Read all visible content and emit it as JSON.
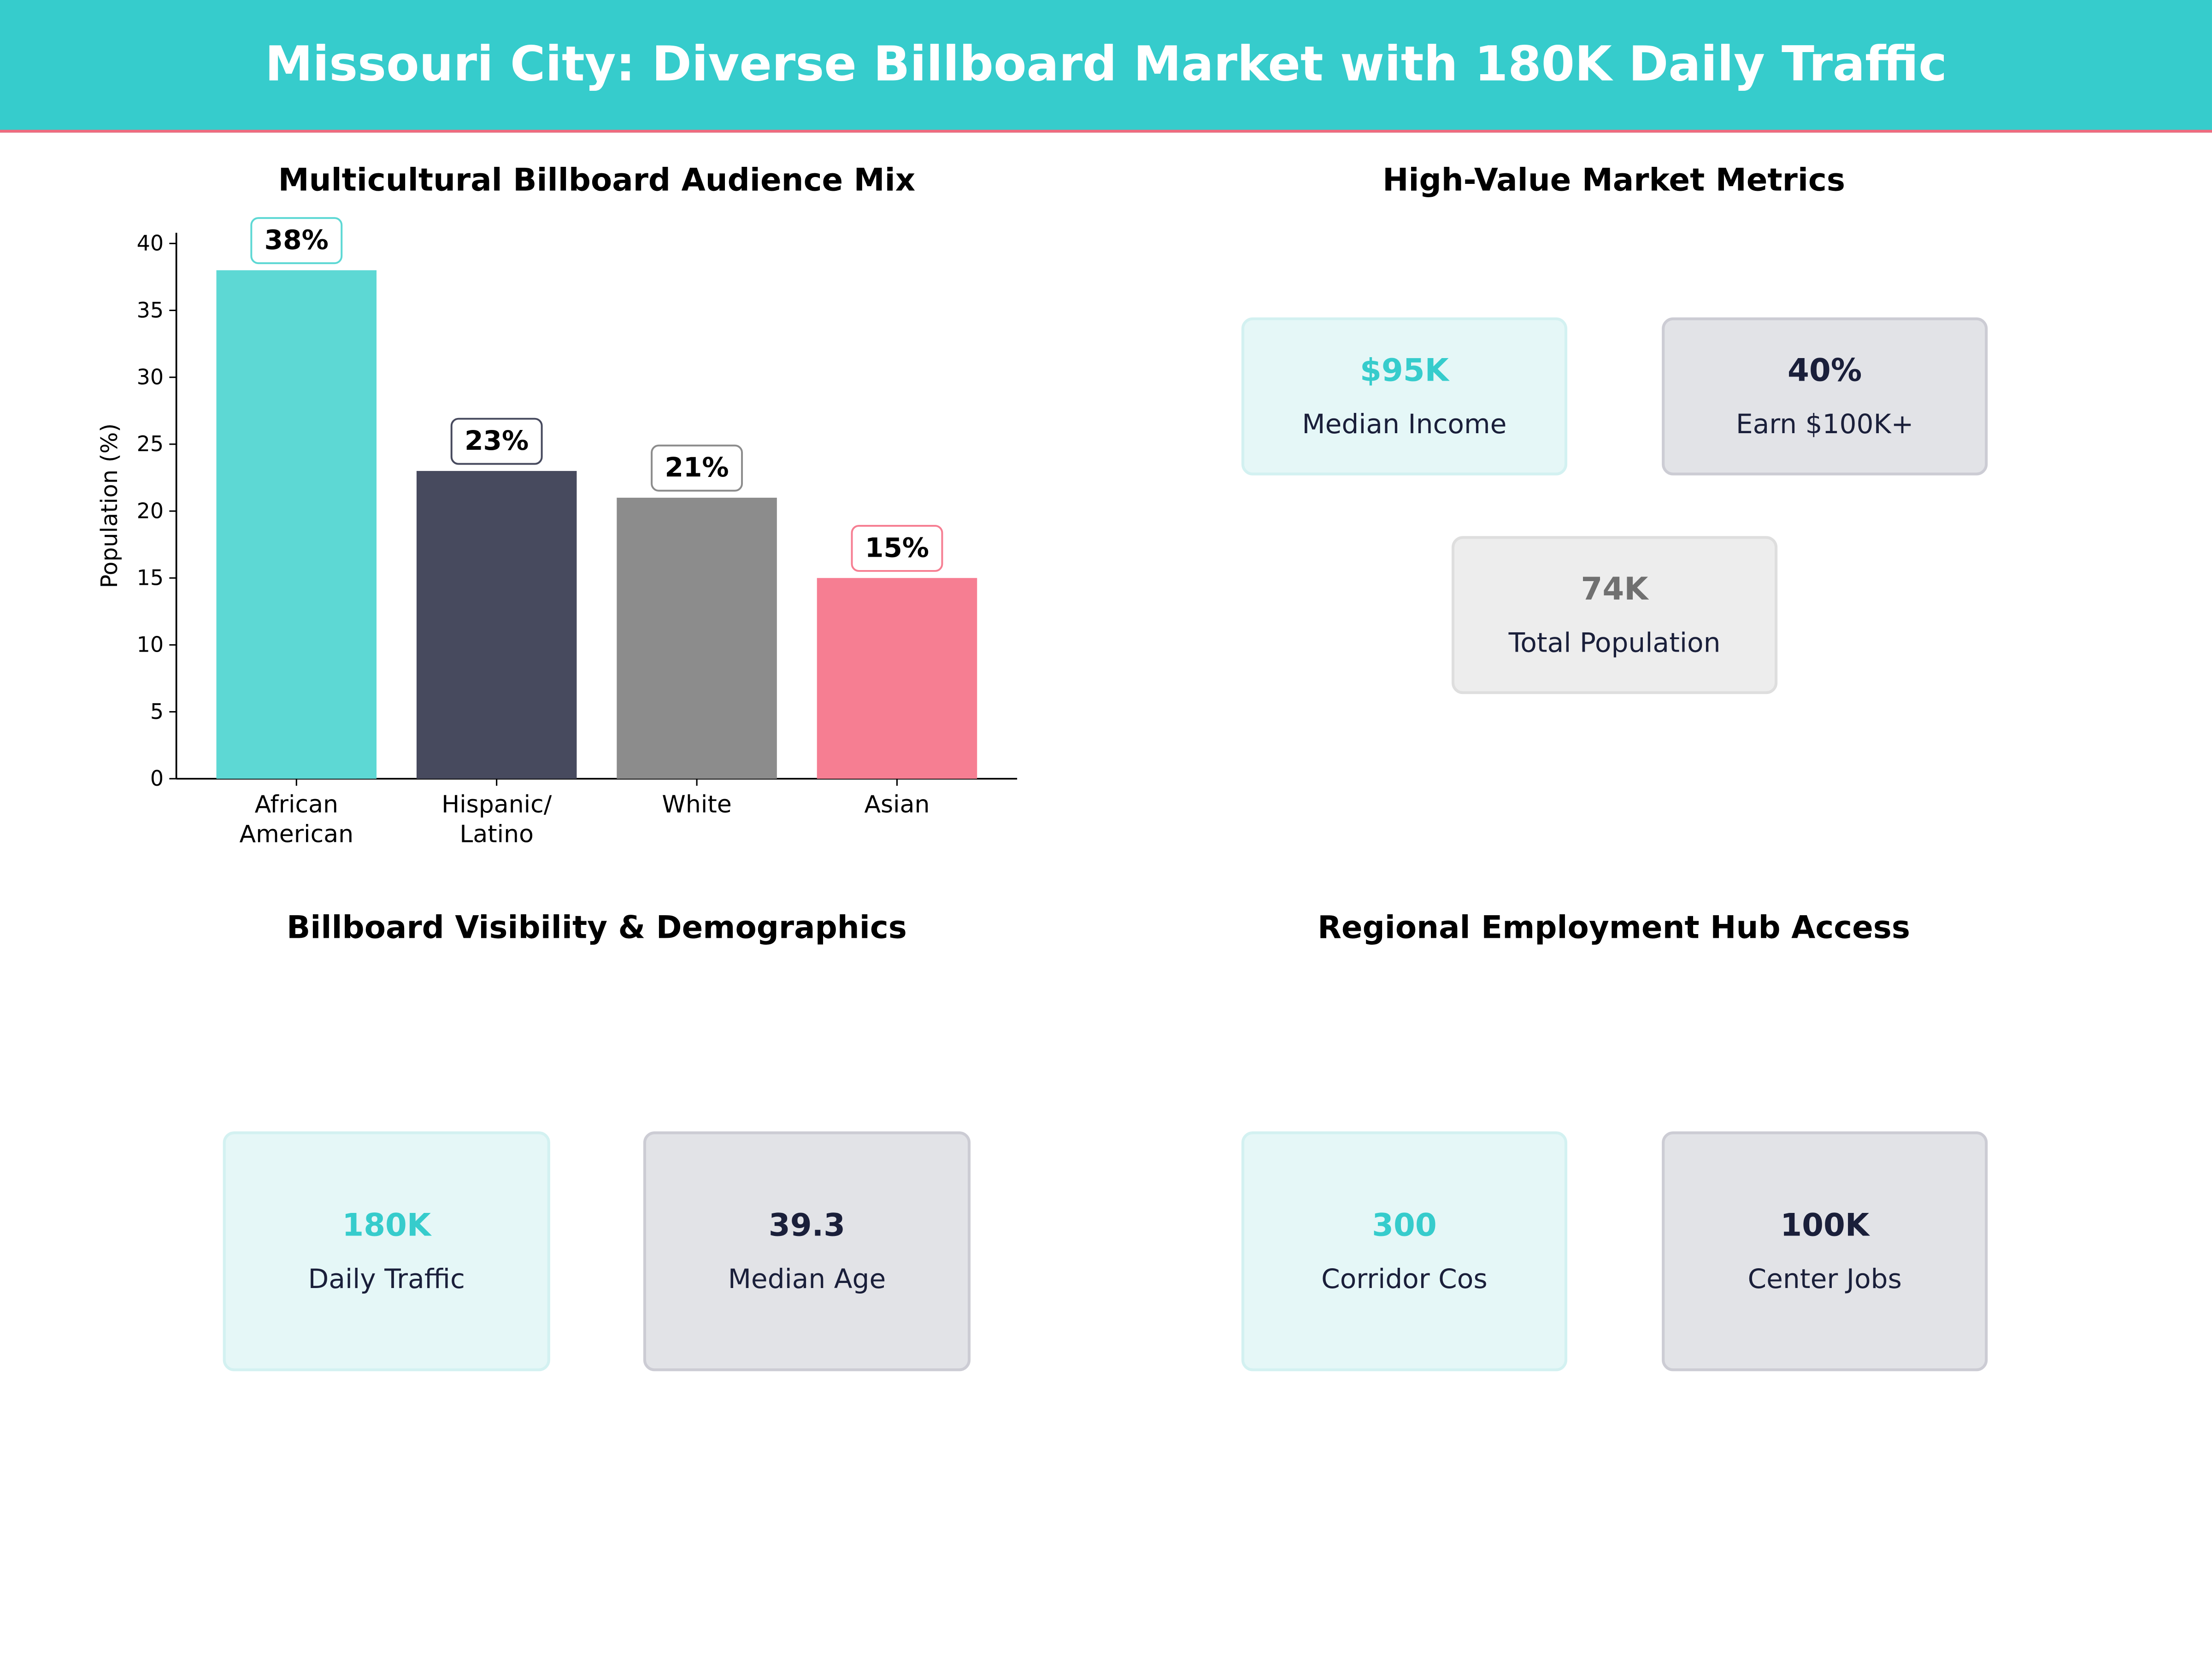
{
  "header": {
    "title": "Missouri City: Diverse Billboard Market with 180K Daily Traffic"
  },
  "colors": {
    "header": "#36CCCC",
    "accent_line": "#F06A7E",
    "teal": "#36CCCC",
    "navy": "#1A1F3A",
    "gray": "#707070"
  },
  "chart_data": {
    "type": "bar",
    "title": "Multicultural Billboard Audience Mix",
    "ylabel": "Population (%)",
    "xlabel": "",
    "categories": [
      "African\nAmerican",
      "Hispanic/\nLatino",
      "White",
      "Asian"
    ],
    "values": [
      38,
      23,
      21,
      15
    ],
    "data_labels": [
      "38%",
      "23%",
      "21%",
      "15%"
    ],
    "colors": [
      "#5DD8D4",
      "#474A5E",
      "#8C8C8C",
      "#F67E92"
    ],
    "ylim": [
      0,
      40.8
    ],
    "yticks": [
      0,
      5,
      10,
      15,
      20,
      25,
      30,
      35,
      40
    ],
    "grid": false
  },
  "metrics": {
    "title": "High-Value Market Metrics",
    "cards": [
      {
        "value": "$95K",
        "label": "Median Income"
      },
      {
        "value": "40%",
        "label": "Earn $100K+"
      },
      {
        "value": "74K",
        "label": "Total Population"
      }
    ]
  },
  "visibility": {
    "title": "Billboard Visibility & Demographics",
    "cards": [
      {
        "value": "180K",
        "label": "Daily Traffic"
      },
      {
        "value": "39.3",
        "label": "Median Age"
      }
    ]
  },
  "employment": {
    "title": "Regional Employment Hub Access",
    "cards": [
      {
        "value": "300",
        "label": "Corridor Cos"
      },
      {
        "value": "100K",
        "label": "Center Jobs"
      }
    ]
  }
}
